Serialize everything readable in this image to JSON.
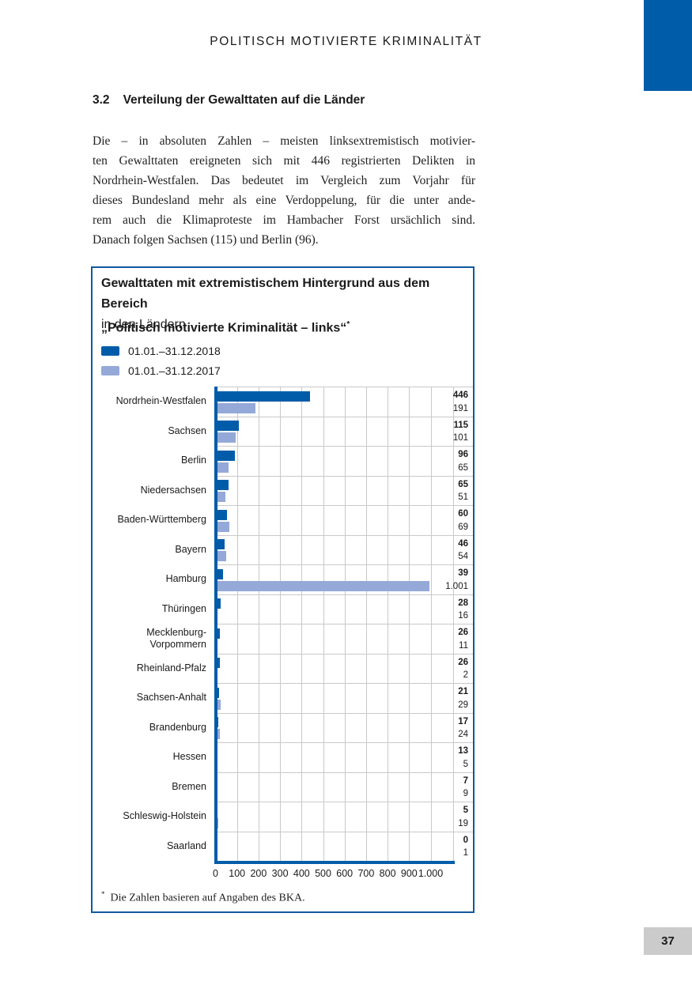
{
  "page": {
    "header_title": "POLITISCH MOTIVIERTE KRIMINALITÄT",
    "page_number": "37"
  },
  "section": {
    "number": "3.2",
    "heading": "Verteilung der Gewalttaten auf die Länder"
  },
  "paragraph": {
    "lines": [
      "Die – in absoluten Zahlen – meisten linksextremistisch motivier-",
      "ten Gewalttaten ereigneten sich mit 446 registrierten Delikten in",
      "Nordrhein-Westfalen. Das bedeutet im Vergleich zum Vorjahr für",
      "dieses Bundesland mehr als eine Verdoppelung, für die unter ande-",
      "rem auch die Klimaproteste im Hambacher Forst ursächlich sind.",
      "Danach folgen Sachsen (115) und Berlin (96)."
    ]
  },
  "chart_box": {
    "title_line1": "Gewalttaten mit extremistischem Hintergrund aus dem Bereich",
    "title_line2": "„Politisch motivierte Kriminalität – links“",
    "title_superscript": "*",
    "subtitle": "in den Ländern",
    "footnote_marker": "*",
    "footnote_text": "Die Zahlen basieren auf Angaben des BKA."
  },
  "theme": {
    "accent_blue": "#005CA9",
    "bar_2017_blue": "#94A9D8",
    "grid_gray": "#C9C9C9",
    "page_number_bg": "#CBCBCB"
  },
  "chart_data": {
    "type": "bar",
    "orientation": "horizontal",
    "title": "Gewalttaten mit extremistischem Hintergrund aus dem Bereich „Politisch motivierte Kriminalität – links“ in den Ländern",
    "legend_position": "top-left",
    "grid": true,
    "xlim": [
      0,
      1100
    ],
    "x_ticks": [
      "0",
      "100",
      "200",
      "300",
      "400",
      "500",
      "600",
      "700",
      "800",
      "900",
      "1.000"
    ],
    "categories": [
      "Nordrhein-Westfalen",
      "Sachsen",
      "Berlin",
      "Niedersachsen",
      "Baden-Württemberg",
      "Bayern",
      "Hamburg",
      "Thüringen",
      "Mecklenburg-\nVorpommern",
      "Rheinland-Pfalz",
      "Sachsen-Anhalt",
      "Brandenburg",
      "Hessen",
      "Bremen",
      "Schleswig-Holstein",
      "Saarland"
    ],
    "series": [
      {
        "name": "01.01.–31.12.2018",
        "color": "#005CA9",
        "values": [
          446,
          115,
          96,
          65,
          60,
          46,
          39,
          28,
          26,
          26,
          21,
          17,
          13,
          7,
          5,
          0
        ]
      },
      {
        "name": "01.01.–31.12.2017",
        "color": "#94A9D8",
        "values": [
          191,
          101,
          65,
          51,
          69,
          54,
          1001,
          16,
          11,
          2,
          29,
          24,
          5,
          9,
          19,
          1
        ]
      }
    ]
  }
}
